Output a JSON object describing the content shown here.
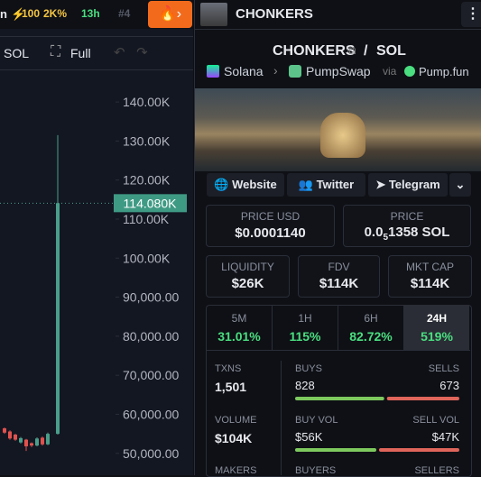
{
  "topbar": {
    "items": [
      "n",
      "100",
      "2K%",
      "13h",
      "#4"
    ]
  },
  "toolbar": {
    "quote": "SOL",
    "full": "Full"
  },
  "chart": {
    "ylim": [
      44400,
      148800
    ],
    "yticks": [
      {
        "value": 140000,
        "label": "140.00K"
      },
      {
        "value": 130000,
        "label": "130.00K"
      },
      {
        "value": 120000,
        "label": "120.00K"
      },
      {
        "value": 110000,
        "label": "110.00K"
      },
      {
        "value": 100000,
        "label": "100.00K"
      },
      {
        "value": 90000,
        "label": "90,000.00"
      },
      {
        "value": 80000,
        "label": "80,000.00"
      },
      {
        "value": 70000,
        "label": "70,000.00"
      },
      {
        "value": 60000,
        "label": "60,000.00"
      },
      {
        "value": 50000,
        "label": "50,000.00"
      }
    ],
    "price": {
      "value": 114080,
      "label": "114.080K"
    },
    "candles": [
      {
        "o": 56400,
        "h": 56600,
        "l": 55000,
        "c": 55300
      },
      {
        "o": 55600,
        "h": 55900,
        "l": 53500,
        "c": 53800
      },
      {
        "o": 54800,
        "h": 55000,
        "l": 53200,
        "c": 53500
      },
      {
        "o": 52800,
        "h": 54200,
        "l": 52500,
        "c": 53900
      },
      {
        "o": 53500,
        "h": 53700,
        "l": 50600,
        "c": 51800
      },
      {
        "o": 52600,
        "h": 52800,
        "l": 51600,
        "c": 52000
      },
      {
        "o": 52000,
        "h": 54100,
        "l": 51800,
        "c": 53800
      },
      {
        "o": 54000,
        "h": 54300,
        "l": 52000,
        "c": 52300
      },
      {
        "o": 52300,
        "h": 55300,
        "l": 52100,
        "c": 55000
      },
      {
        "o": 55000,
        "h": 131500,
        "l": 54800,
        "c": 114080
      }
    ]
  },
  "header": {
    "name": "CHONKERS"
  },
  "pair": {
    "base": "CHONKERS",
    "separator": "/",
    "quote": "SOL"
  },
  "breadcrumb": {
    "chain": "Solana",
    "dex": "PumpSwap",
    "via": "via",
    "launchpad": "Pump.fun"
  },
  "links": [
    "Website",
    "Twitter",
    "Telegram"
  ],
  "prices": {
    "usd_label": "PRICE USD",
    "usd": "$0.0001140",
    "native_label": "PRICE",
    "native_lead": "0.0",
    "native_zeros": "5",
    "native_rest": "1358 SOL"
  },
  "metrics": [
    {
      "label": "LIQUIDITY",
      "value": "$26K"
    },
    {
      "label": "FDV",
      "value": "$114K"
    },
    {
      "label": "MKT CAP",
      "value": "$114K"
    }
  ],
  "tabs": [
    {
      "label": "5M",
      "value": "31.01%"
    },
    {
      "label": "1H",
      "value": "115%"
    },
    {
      "label": "6H",
      "value": "82.72%"
    },
    {
      "label": "24H",
      "value": "519%"
    }
  ],
  "stats": {
    "txns_label": "TXNS",
    "txns": "1,501",
    "buys_label": "BUYS",
    "buys": 828,
    "sells_label": "SELLS",
    "sells": 673,
    "volume_label": "VOLUME",
    "volume": "$104K",
    "buy_vol_label": "BUY VOL",
    "buy_vol": "$56K",
    "sell_vol_label": "SELL VOL",
    "sell_vol": "$47K",
    "makers_label": "MAKERS",
    "buyers_label": "BUYERS",
    "sellers_label": "SELLERS"
  }
}
